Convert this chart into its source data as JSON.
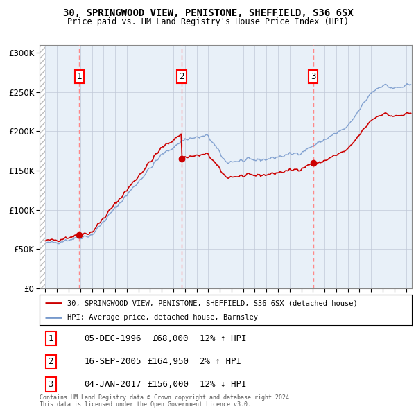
{
  "title": "30, SPRINGWOOD VIEW, PENISTONE, SHEFFIELD, S36 6SX",
  "subtitle": "Price paid vs. HM Land Registry's House Price Index (HPI)",
  "purchases": [
    {
      "date": 1996.92,
      "price": 68000,
      "label": "1"
    },
    {
      "date": 2005.71,
      "price": 164950,
      "label": "2"
    },
    {
      "date": 2017.01,
      "price": 156000,
      "label": "3"
    }
  ],
  "purchase_dates_str": [
    "05-DEC-1996",
    "16-SEP-2005",
    "04-JAN-2017"
  ],
  "purchase_prices_str": [
    "£68,000",
    "£164,950",
    "£156,000"
  ],
  "purchase_hpi_str": [
    "12% ↑ HPI",
    "2% ↑ HPI",
    "12% ↓ HPI"
  ],
  "legend_property": "30, SPRINGWOOD VIEW, PENISTONE, SHEFFIELD, S36 6SX (detached house)",
  "legend_hpi": "HPI: Average price, detached house, Barnsley",
  "footer": "Contains HM Land Registry data © Crown copyright and database right 2024.\nThis data is licensed under the Open Government Licence v3.0.",
  "ylim": [
    0,
    310000
  ],
  "yticks": [
    0,
    50000,
    100000,
    150000,
    200000,
    250000,
    300000
  ],
  "xmin": 1993.5,
  "xmax": 2025.5,
  "property_color": "#cc0000",
  "hpi_line_color": "#7799cc",
  "plot_bg_color": "#e8f0f8",
  "grid_color": "#c0c8d8",
  "vline_color": "#ff8888"
}
